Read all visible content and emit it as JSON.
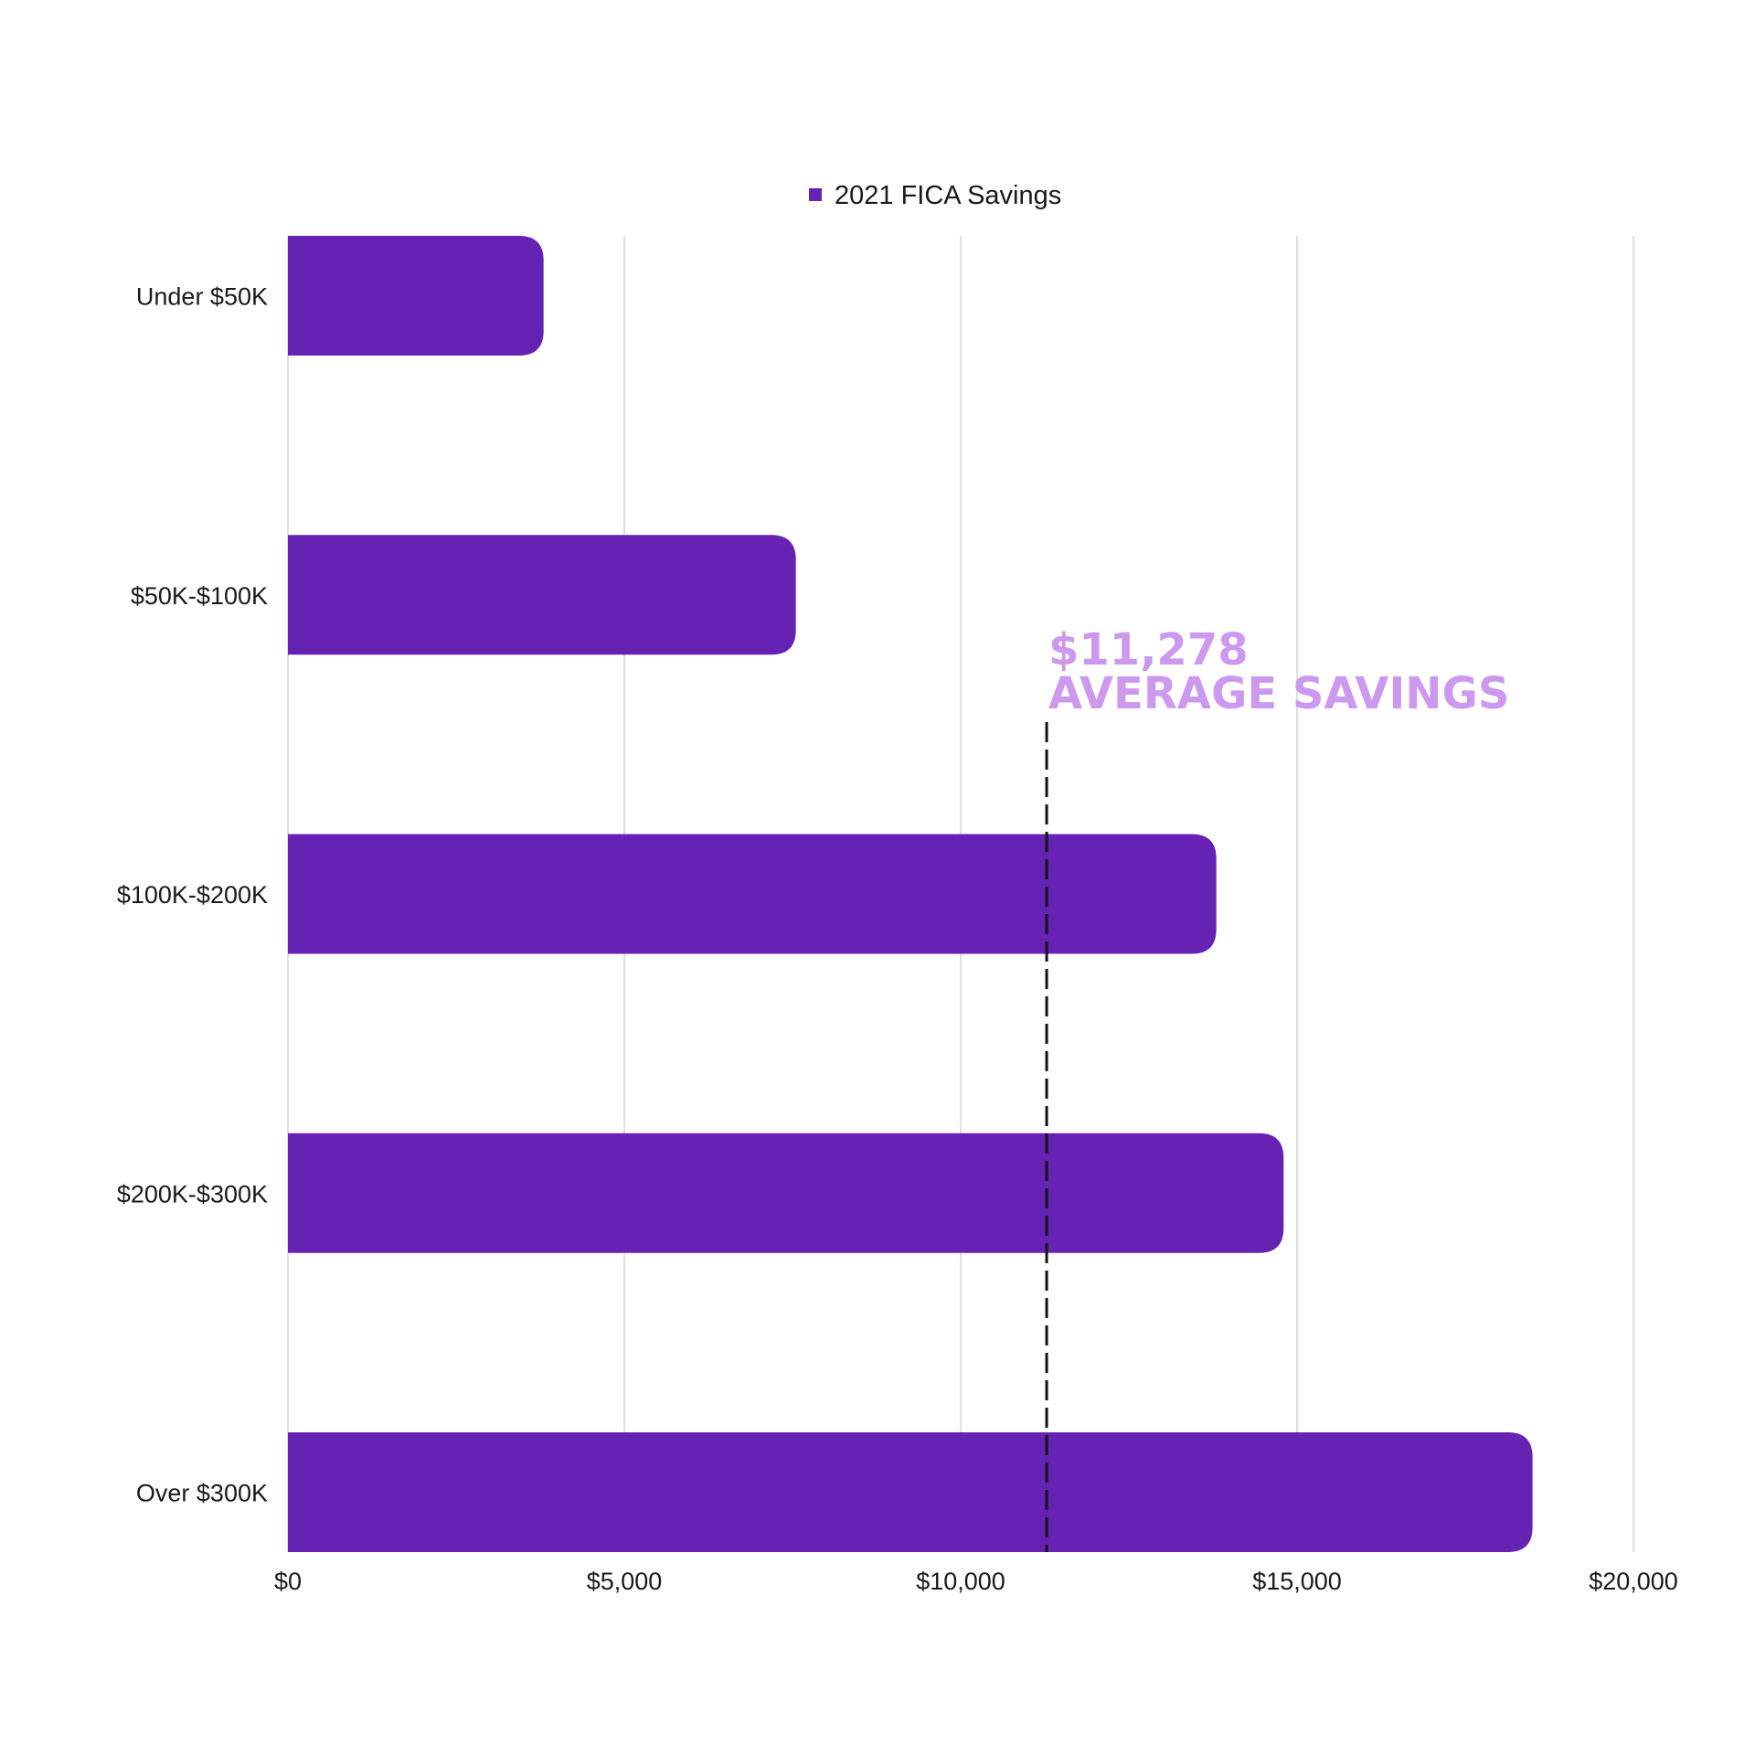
{
  "chart_data": {
    "type": "bar",
    "orientation": "horizontal",
    "categories": [
      "Under $50K",
      "$50K-$100K",
      "$100K-$200K",
      "$200K-$300K",
      "Over $300K"
    ],
    "series": [
      {
        "name": "2021 FICA Savings",
        "values": [
          3800,
          7550,
          13800,
          14800,
          18500
        ]
      }
    ],
    "xlim": [
      0,
      20000
    ],
    "x_ticks": [
      0,
      5000,
      10000,
      15000,
      20000
    ],
    "x_tick_labels": [
      "$0",
      "$5,000",
      "$10,000",
      "$15,000",
      "$20,000"
    ],
    "grid": true,
    "legend": "top-center",
    "title": "",
    "xlabel": "",
    "ylabel": "",
    "reference_line": {
      "value": 11278,
      "style": "dashed",
      "annotation_lines": [
        "$11,278",
        "AVERAGE SAVINGS"
      ]
    },
    "colors": {
      "bar": "#6622b3",
      "annotation": "#cc99ee",
      "grid": "#d6d6d6",
      "reference_line": "#111111"
    }
  }
}
